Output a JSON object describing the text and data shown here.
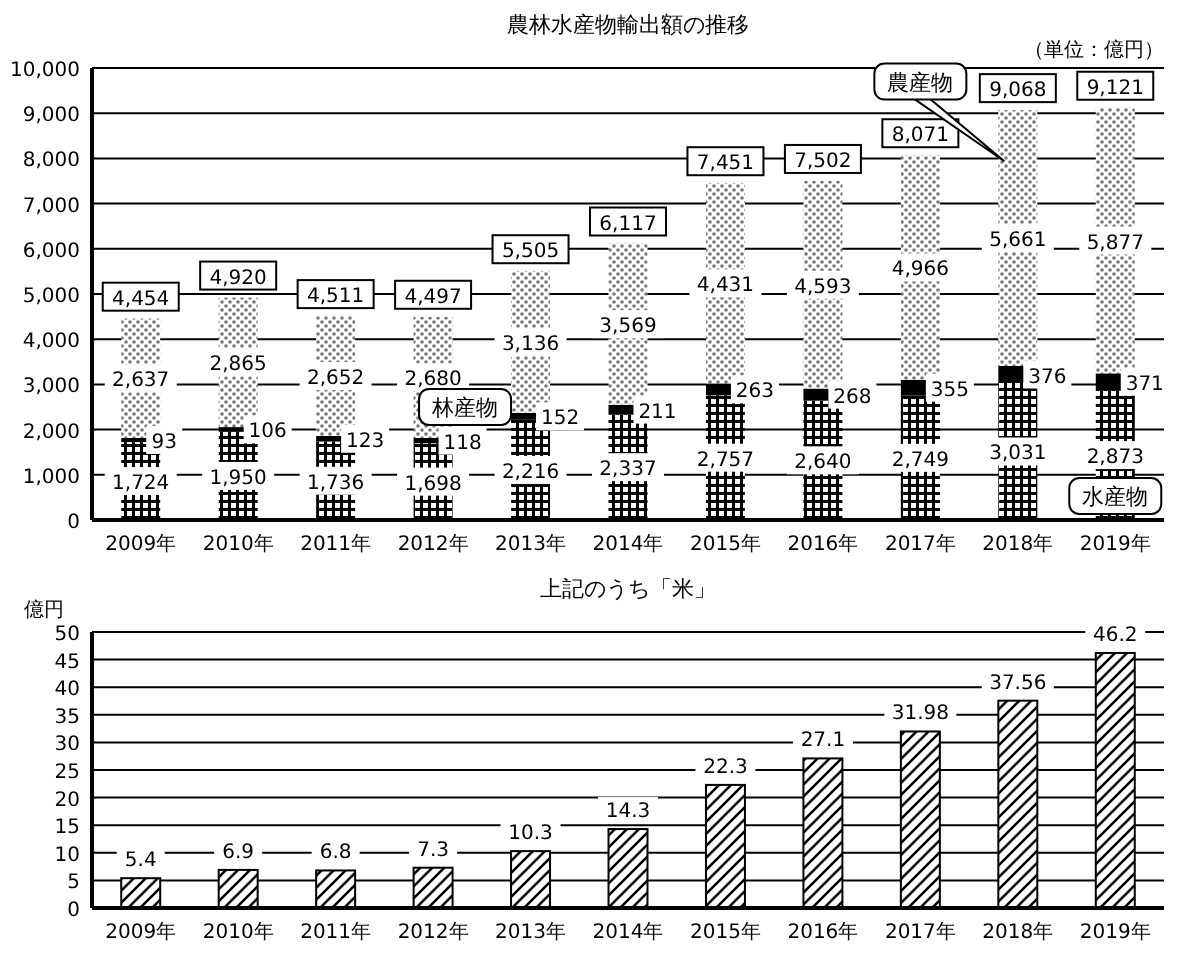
{
  "chart_data": [
    {
      "type": "bar",
      "title": "農林水産物輸出額の推移",
      "annotations": [
        "（単位：億円）"
      ],
      "stacked": true,
      "categories": [
        "2009年",
        "2010年",
        "2011年",
        "2012年",
        "2013年",
        "2014年",
        "2015年",
        "2016年",
        "2017年",
        "2018年",
        "2019年"
      ],
      "series": [
        {
          "name": "水産物",
          "color": "#000000",
          "values": [
            1724,
            1950,
            1736,
            1698,
            2216,
            2337,
            2757,
            2640,
            2749,
            3031,
            2873
          ],
          "value_labels": [
            "1,724",
            "1,950",
            "1,736",
            "1,698",
            "2,216",
            "2,337",
            "2,757",
            "2,640",
            "2,749",
            "3,031",
            "2,873"
          ]
        },
        {
          "name": "林産物",
          "color": "#000000",
          "values": [
            93,
            106,
            123,
            118,
            152,
            211,
            263,
            268,
            355,
            376,
            371
          ],
          "value_labels": [
            "93",
            "106",
            "123",
            "118",
            "152",
            "211",
            "263",
            "268",
            "355",
            "376",
            "371"
          ]
        },
        {
          "name": "農産物",
          "color": "#777777",
          "values": [
            2637,
            2865,
            2652,
            2680,
            3136,
            3569,
            4431,
            4593,
            4966,
            5661,
            5877
          ],
          "value_labels": [
            "2,637",
            "2,865",
            "2,652",
            "2,680",
            "3,136",
            "3,569",
            "4,431",
            "4,593",
            "4,966",
            "5,661",
            "5,877"
          ]
        }
      ],
      "totals": [
        "4,454",
        "4,920",
        "4,511",
        "4,497",
        "5,505",
        "6,117",
        "7,451",
        "7,502",
        "8,071",
        "9,068",
        "9,121"
      ],
      "ylim": [
        0,
        10000
      ],
      "yticks": [
        0,
        {
          "value": 1000,
          "label": "1,000"
        },
        {
          "value": 2000,
          "label": "2,000"
        },
        {
          "value": 3000,
          "label": "3,000"
        },
        {
          "value": 4000,
          "label": "4,000"
        },
        {
          "value": 5000,
          "label": "5,000"
        },
        {
          "value": 6000,
          "label": "6,000"
        },
        {
          "value": 7000,
          "label": "7,000"
        },
        {
          "value": 8000,
          "label": "8,000"
        },
        {
          "value": 9000,
          "label": "9,000"
        },
        {
          "value": 10000,
          "label": "10,000"
        }
      ],
      "grid": "y"
    },
    {
      "type": "bar",
      "title": "上記のうち「米」",
      "ylabel": "億円",
      "categories": [
        "2009年",
        "2010年",
        "2011年",
        "2012年",
        "2013年",
        "2014年",
        "2015年",
        "2016年",
        "2017年",
        "2018年",
        "2019年"
      ],
      "color": "#000000",
      "values": [
        5.4,
        6.9,
        6.8,
        7.3,
        10.3,
        14.3,
        22.3,
        27.1,
        31.98,
        37.56,
        46.2
      ],
      "data_labels": true,
      "ylim": [
        0,
        50
      ],
      "yticks": [
        0,
        5,
        10,
        15,
        20,
        25,
        30,
        35,
        40,
        45,
        50
      ],
      "grid": "y"
    }
  ]
}
